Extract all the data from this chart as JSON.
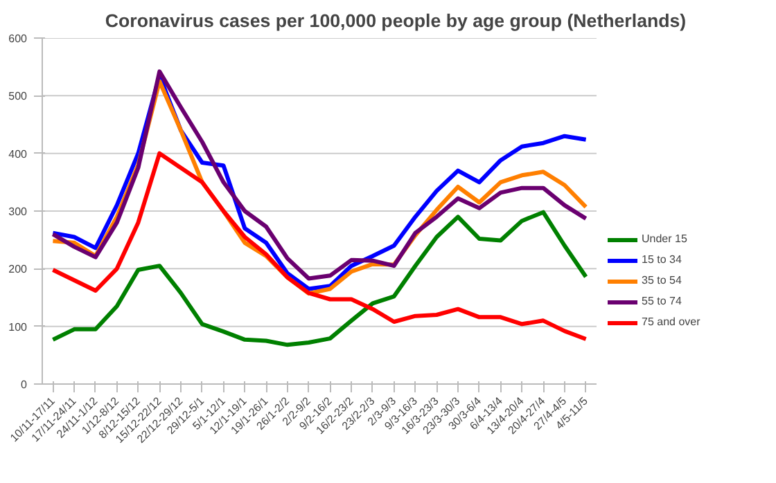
{
  "chart_data": {
    "type": "line",
    "title": "Coronavirus cases per 100,000 people by age group (Netherlands)",
    "categories": [
      "10/11-17/11",
      "17/11-24/11",
      "24/11-1/12",
      "1/12-8/12",
      "8/12-15/12",
      "15/12-22/12",
      "22/12-29/12",
      "29/12-5/1",
      "5/1-12/1",
      "12/1-19/1",
      "19/1-26/1",
      "26/1-2/2",
      "2/2-9/2",
      "9/2-16/2",
      "16/2-23/2",
      "23/2-2/3",
      "2/3-9/3",
      "9/3-16/3",
      "16/3-23/3",
      "23/3-30/3",
      "30/3-6/4",
      "6/4-13/4",
      "13/4-20/4",
      "20/4-27/4",
      "27/4-4/5",
      "4/5-11/5"
    ],
    "series": [
      {
        "name": "Under 15",
        "color": "#008000",
        "values": [
          77,
          95,
          95,
          135,
          198,
          205,
          158,
          104,
          91,
          77,
          75,
          68,
          72,
          79,
          110,
          140,
          152,
          205,
          255,
          290,
          252,
          249,
          283,
          298,
          240,
          186
        ]
      },
      {
        "name": "15 to 34",
        "color": "#0000ff",
        "values": [
          262,
          255,
          236,
          310,
          400,
          535,
          440,
          384,
          379,
          270,
          245,
          192,
          165,
          170,
          205,
          222,
          240,
          290,
          335,
          370,
          350,
          388,
          412,
          418,
          430,
          424
        ]
      },
      {
        "name": "35 to 54",
        "color": "#ff7f00",
        "values": [
          248,
          245,
          222,
          290,
          380,
          525,
          440,
          350,
          300,
          245,
          222,
          185,
          157,
          165,
          195,
          208,
          207,
          258,
          302,
          342,
          315,
          350,
          362,
          368,
          345,
          307
        ]
      },
      {
        "name": "55 to 74",
        "color": "#6a0070",
        "values": [
          260,
          238,
          220,
          280,
          375,
          542,
          480,
          420,
          350,
          300,
          273,
          218,
          183,
          188,
          215,
          214,
          205,
          262,
          290,
          322,
          305,
          332,
          340,
          340,
          310,
          287
        ]
      },
      {
        "name": "75 and over",
        "color": "#ff0000",
        "values": [
          198,
          180,
          162,
          200,
          280,
          400,
          375,
          350,
          300,
          255,
          225,
          185,
          158,
          147,
          147,
          130,
          108,
          118,
          120,
          130,
          116,
          116,
          104,
          110,
          92,
          78
        ]
      }
    ],
    "ylim": [
      0,
      600
    ],
    "yticks": [
      0,
      100,
      200,
      300,
      400,
      500,
      600
    ],
    "grid": "y",
    "legend": "right",
    "marker": "none",
    "line_style": "solid"
  }
}
